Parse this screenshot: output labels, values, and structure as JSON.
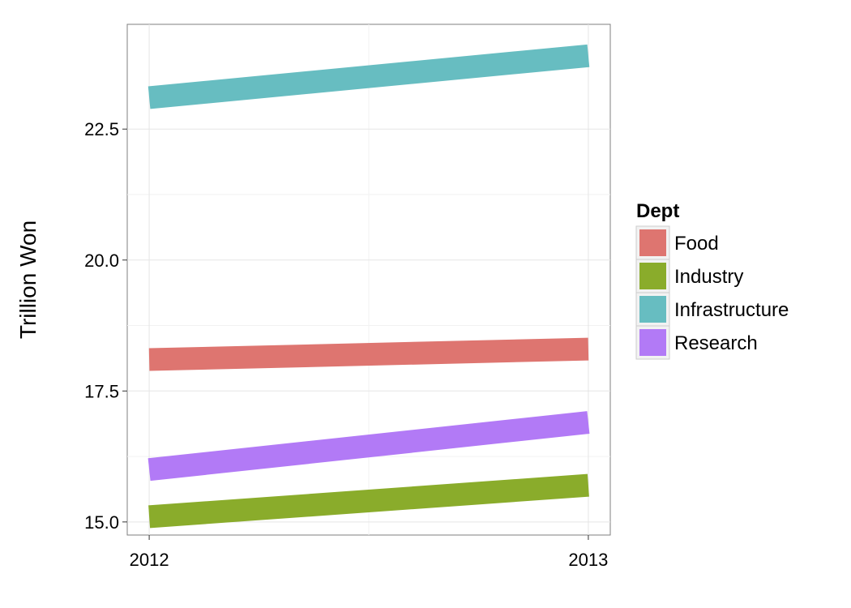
{
  "chart_data": {
    "type": "line",
    "title": "",
    "xlabel": "",
    "ylabel": "Trillion Won",
    "x": [
      "2012",
      "2013"
    ],
    "xlim": [
      2011.95,
      2013.05
    ],
    "ylim": [
      14.75,
      24.5
    ],
    "yticks": [
      15.0,
      17.5,
      20.0,
      22.5
    ],
    "ytick_labels": [
      "15.0",
      "17.5",
      "20.0",
      "22.5"
    ],
    "grid": true,
    "legend": {
      "title": "Dept",
      "position": "right"
    },
    "series": [
      {
        "name": "Food",
        "values": [
          18.1,
          18.3
        ],
        "color": "#DE7570"
      },
      {
        "name": "Industry",
        "values": [
          15.1,
          15.7
        ],
        "color": "#8AAC2B"
      },
      {
        "name": "Infrastructure",
        "values": [
          23.1,
          23.9
        ],
        "color": "#67BDC1"
      },
      {
        "name": "Research",
        "values": [
          16.0,
          16.9
        ],
        "color": "#B27AF6"
      }
    ]
  }
}
